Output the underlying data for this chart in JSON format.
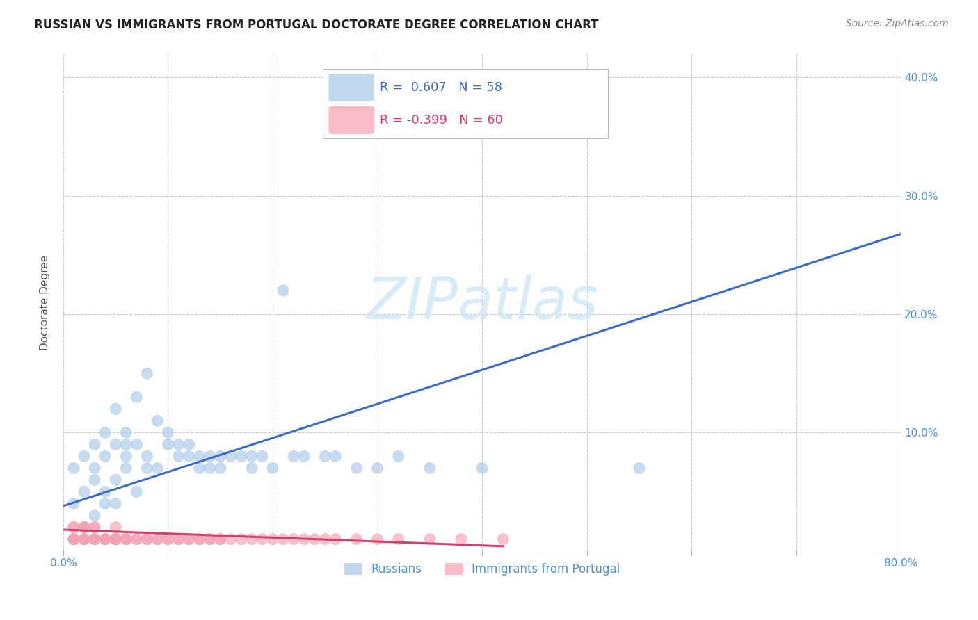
{
  "title": "RUSSIAN VS IMMIGRANTS FROM PORTUGAL DOCTORATE DEGREE CORRELATION CHART",
  "source": "Source: ZipAtlas.com",
  "ylabel": "Doctorate Degree",
  "xlim": [
    0.0,
    0.8
  ],
  "ylim": [
    0.0,
    0.42
  ],
  "xticks": [
    0.0,
    0.1,
    0.2,
    0.3,
    0.4,
    0.5,
    0.6,
    0.7,
    0.8
  ],
  "xticklabels": [
    "0.0%",
    "",
    "",
    "",
    "",
    "",
    "",
    "",
    "80.0%"
  ],
  "yticks": [
    0.0,
    0.1,
    0.2,
    0.3,
    0.4
  ],
  "yticklabels": [
    "",
    "10.0%",
    "20.0%",
    "30.0%",
    "40.0%"
  ],
  "grid_color": "#c8c8c8",
  "background_color": "#ffffff",
  "blue_color": "#a8c8e8",
  "pink_color": "#f4a0b0",
  "line_blue_color": "#3a6bc8",
  "line_pink_color": "#d44070",
  "tick_color": "#4a90d9",
  "legend_R_blue": "0.607",
  "legend_N_blue": "58",
  "legend_R_pink": "-0.399",
  "legend_N_pink": "60",
  "legend_label_blue": "Russians",
  "legend_label_pink": "Immigrants from Portugal",
  "blue_line_x0": 0.0,
  "blue_line_y0": 0.038,
  "blue_line_x1": 0.8,
  "blue_line_y1": 0.268,
  "pink_line_x0": 0.0,
  "pink_line_y0": 0.018,
  "pink_line_x1": 0.42,
  "pink_line_y1": 0.004,
  "russians_x": [
    0.01,
    0.01,
    0.02,
    0.02,
    0.02,
    0.03,
    0.03,
    0.03,
    0.03,
    0.04,
    0.04,
    0.04,
    0.04,
    0.05,
    0.05,
    0.05,
    0.05,
    0.06,
    0.06,
    0.06,
    0.06,
    0.07,
    0.07,
    0.07,
    0.08,
    0.08,
    0.08,
    0.09,
    0.09,
    0.1,
    0.1,
    0.11,
    0.11,
    0.12,
    0.12,
    0.13,
    0.13,
    0.14,
    0.14,
    0.15,
    0.15,
    0.16,
    0.17,
    0.18,
    0.18,
    0.19,
    0.2,
    0.21,
    0.22,
    0.23,
    0.25,
    0.26,
    0.28,
    0.3,
    0.32,
    0.35,
    0.4,
    0.55
  ],
  "russians_y": [
    0.04,
    0.07,
    0.02,
    0.05,
    0.08,
    0.03,
    0.06,
    0.09,
    0.07,
    0.04,
    0.08,
    0.1,
    0.05,
    0.06,
    0.09,
    0.12,
    0.04,
    0.07,
    0.1,
    0.08,
    0.09,
    0.05,
    0.09,
    0.13,
    0.07,
    0.08,
    0.15,
    0.07,
    0.11,
    0.09,
    0.1,
    0.08,
    0.09,
    0.08,
    0.09,
    0.07,
    0.08,
    0.07,
    0.08,
    0.07,
    0.08,
    0.08,
    0.08,
    0.07,
    0.08,
    0.08,
    0.07,
    0.22,
    0.08,
    0.08,
    0.08,
    0.08,
    0.07,
    0.07,
    0.08,
    0.07,
    0.07,
    0.07
  ],
  "portugal_x": [
    0.01,
    0.01,
    0.01,
    0.01,
    0.01,
    0.02,
    0.02,
    0.02,
    0.02,
    0.02,
    0.03,
    0.03,
    0.03,
    0.03,
    0.03,
    0.04,
    0.04,
    0.04,
    0.05,
    0.05,
    0.05,
    0.05,
    0.06,
    0.06,
    0.06,
    0.07,
    0.07,
    0.08,
    0.08,
    0.09,
    0.09,
    0.1,
    0.1,
    0.11,
    0.11,
    0.12,
    0.12,
    0.13,
    0.13,
    0.14,
    0.14,
    0.15,
    0.15,
    0.16,
    0.17,
    0.18,
    0.19,
    0.2,
    0.21,
    0.22,
    0.23,
    0.24,
    0.25,
    0.26,
    0.28,
    0.3,
    0.32,
    0.35,
    0.38,
    0.42
  ],
  "portugal_y": [
    0.01,
    0.01,
    0.02,
    0.02,
    0.01,
    0.01,
    0.02,
    0.01,
    0.01,
    0.02,
    0.01,
    0.02,
    0.01,
    0.01,
    0.02,
    0.01,
    0.01,
    0.01,
    0.01,
    0.01,
    0.01,
    0.02,
    0.01,
    0.01,
    0.01,
    0.01,
    0.01,
    0.01,
    0.01,
    0.01,
    0.01,
    0.01,
    0.01,
    0.01,
    0.01,
    0.01,
    0.01,
    0.01,
    0.01,
    0.01,
    0.01,
    0.01,
    0.01,
    0.01,
    0.01,
    0.01,
    0.01,
    0.01,
    0.01,
    0.01,
    0.01,
    0.01,
    0.01,
    0.01,
    0.01,
    0.01,
    0.01,
    0.01,
    0.01,
    0.01
  ],
  "title_fontsize": 12,
  "axis_label_fontsize": 11,
  "tick_fontsize": 11,
  "source_fontsize": 10,
  "watermark_text": "ZIPatlas",
  "watermark_fontsize": 60,
  "watermark_color": "#d0e8f8"
}
